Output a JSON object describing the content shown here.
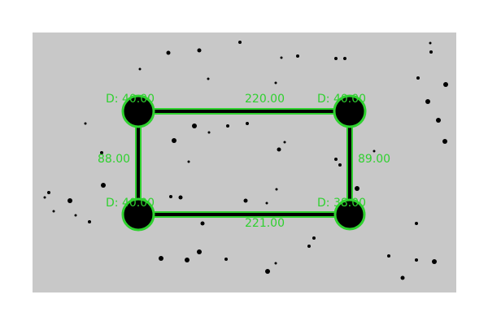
{
  "colors": {
    "background": "#ffffff",
    "panel": "#c8c8c8",
    "accent": "#2fd12f",
    "ink": "#000000"
  },
  "nodes": [
    {
      "id": "top-left",
      "label": "D: 40.00"
    },
    {
      "id": "top-right",
      "label": "D: 40.00"
    },
    {
      "id": "bottom-left",
      "label": "D: 40.00"
    },
    {
      "id": "bottom-right",
      "label": "D: 38.00"
    }
  ],
  "edges": [
    {
      "id": "top",
      "label": "220.00"
    },
    {
      "id": "right",
      "label": "89.00"
    },
    {
      "id": "bottom",
      "label": "221.00"
    },
    {
      "id": "left",
      "label": "88.00"
    }
  ]
}
